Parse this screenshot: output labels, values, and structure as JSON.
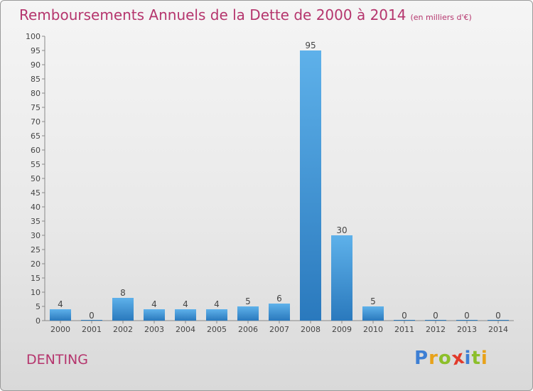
{
  "title": "Remboursements Annuels de la Dette de 2000 à 2014",
  "subtitle": "(en milliers d'€)",
  "commune": "DENTING",
  "brand": {
    "letters": [
      "P",
      "r",
      "o",
      "x",
      "i",
      "t",
      "i"
    ],
    "colors": [
      "#3d7fd4",
      "#e8a21a",
      "#8cbf2a",
      "#e23a2a",
      "#3d7fd4",
      "#8cbf2a",
      "#e8a21a"
    ]
  },
  "colors": {
    "accent": "#b5356d",
    "bar_light": "#5eb1ea",
    "bar_dark": "#2a79bd"
  },
  "chart_data": {
    "type": "bar",
    "title": "Remboursements Annuels de la Dette de 2000 à 2014",
    "subtitle": "(en milliers d'€)",
    "categories": [
      "2000",
      "2001",
      "2002",
      "2003",
      "2004",
      "2005",
      "2006",
      "2007",
      "2008",
      "2009",
      "2010",
      "2011",
      "2012",
      "2013",
      "2014"
    ],
    "values": [
      4,
      0,
      8,
      4,
      4,
      4,
      5,
      6,
      95,
      30,
      5,
      0,
      0,
      0,
      0
    ],
    "ylim": [
      0,
      100
    ],
    "yticks": [
      0,
      5,
      10,
      15,
      20,
      25,
      30,
      35,
      40,
      45,
      50,
      55,
      60,
      65,
      70,
      75,
      80,
      85,
      90,
      95,
      100
    ],
    "grid": false,
    "legend": "none"
  }
}
